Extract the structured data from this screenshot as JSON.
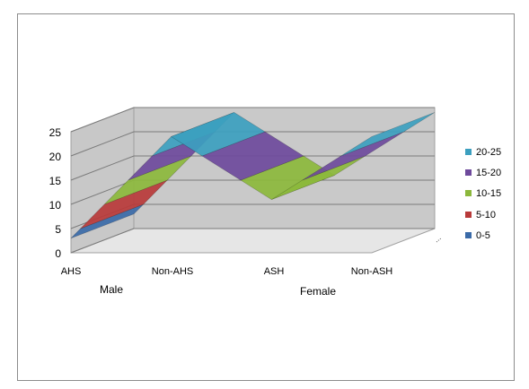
{
  "chart_data": {
    "type": "area",
    "view": "3d-surface",
    "categories": [
      "AHS",
      "Non-AHS",
      "ASH",
      "Non-ASH"
    ],
    "groups": [
      "Male",
      "Female"
    ],
    "y_ticks": [
      "0",
      "5",
      "10",
      "15",
      "20",
      "25"
    ],
    "ylim": [
      0,
      25
    ],
    "grid": true,
    "legend_position": "right",
    "series": [
      {
        "name": "20-25",
        "color": "#3c9fbf"
      },
      {
        "name": "15-20",
        "color": "#6e4a9c"
      },
      {
        "name": "10-15",
        "color": "#8cb83c"
      },
      {
        "name": "5-10",
        "color": "#b83a3a"
      },
      {
        "name": "0-5",
        "color": "#3a6aa8"
      }
    ],
    "values": [
      3,
      24,
      11,
      24
    ],
    "stray_mark": "..."
  }
}
